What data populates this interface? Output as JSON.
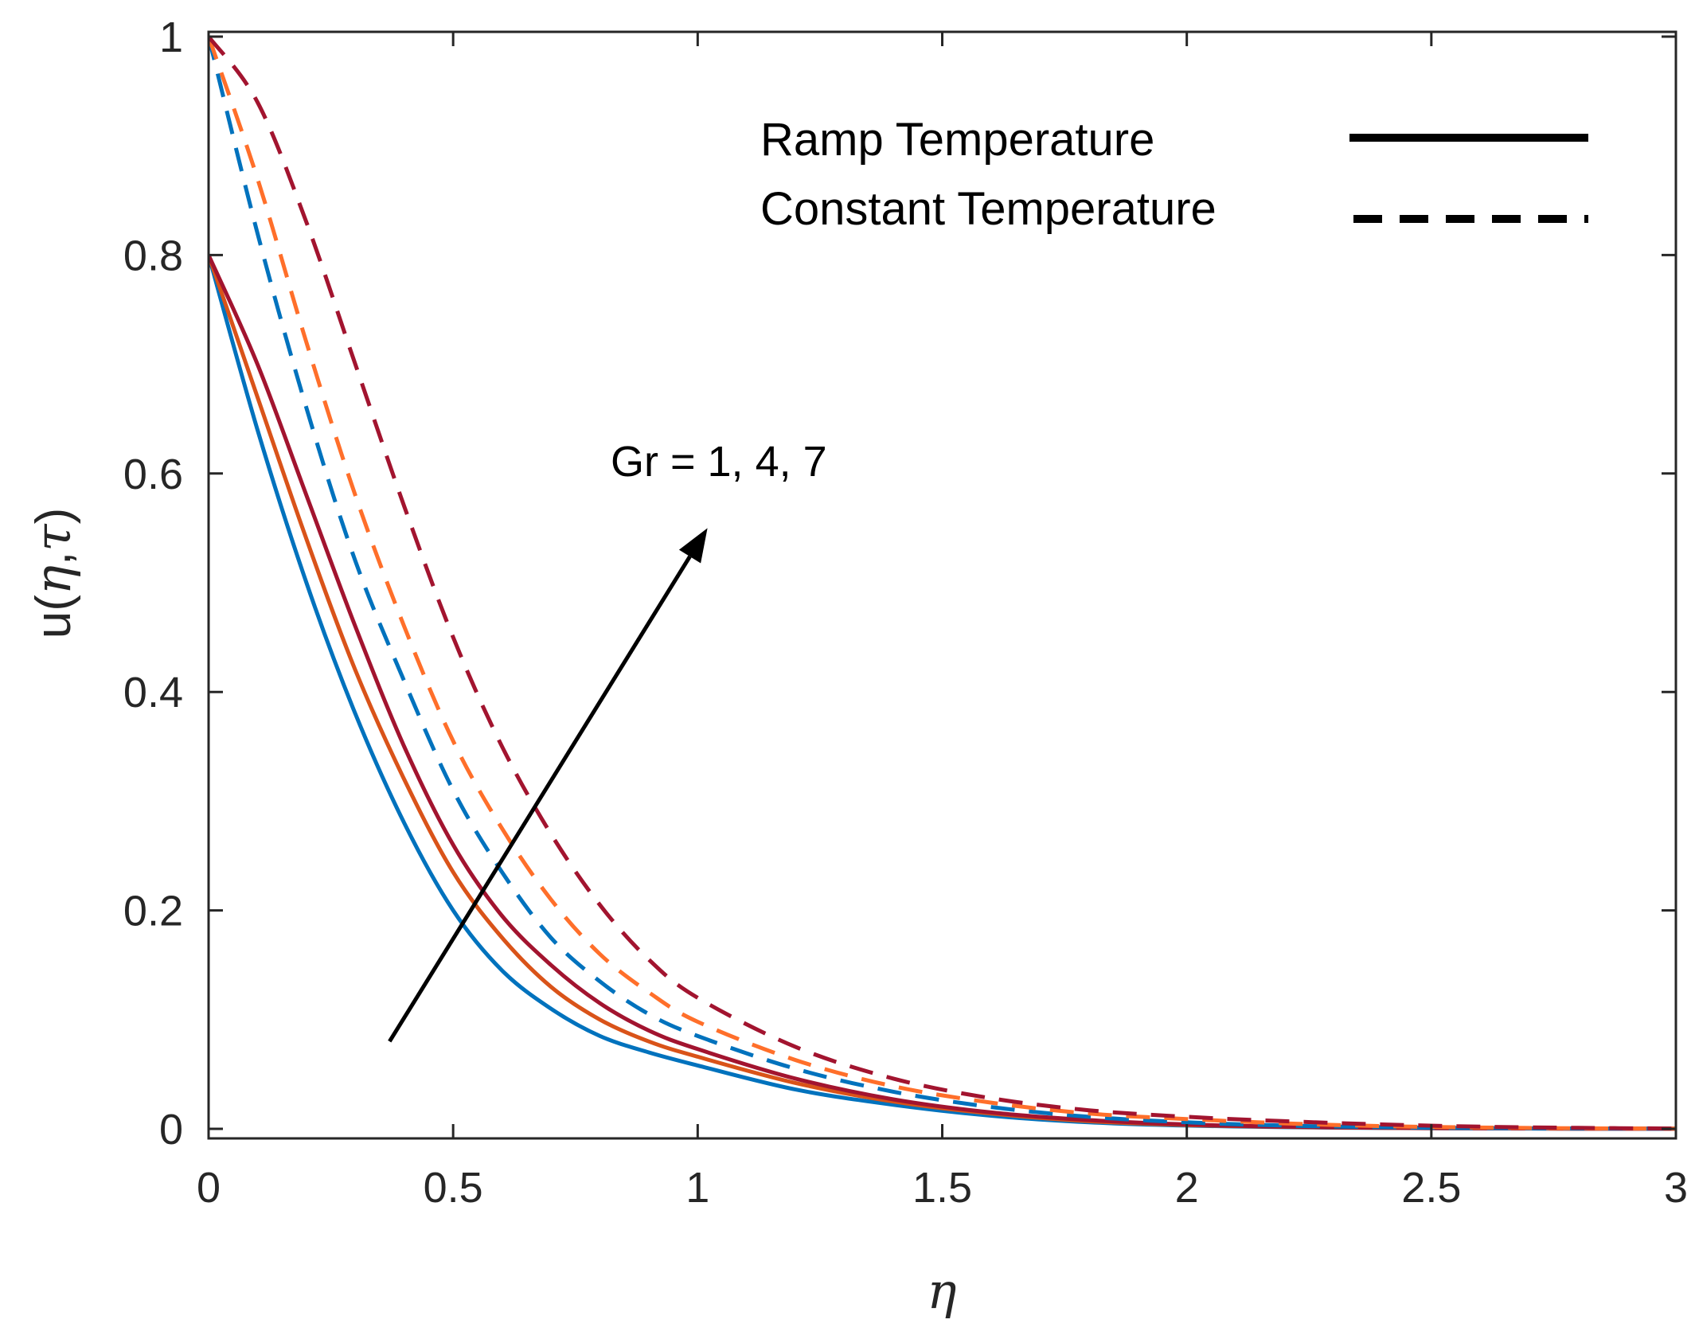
{
  "chart_data": {
    "type": "line",
    "title": "",
    "xlabel": "η",
    "ylabel_parts": [
      "u(",
      "η",
      ",",
      "τ",
      ")"
    ],
    "xlim": [
      0,
      3
    ],
    "ylim": [
      0,
      1
    ],
    "xticks": [
      "0",
      "0.5",
      "1",
      "1.5",
      "2",
      "2.5",
      "3"
    ],
    "yticks": [
      "0",
      "0.2",
      "0.4",
      "0.6",
      "0.8",
      "1"
    ],
    "grid": false,
    "legend": {
      "placement": "top-right",
      "entries": [
        {
          "label": "Ramp Temperature",
          "style": "solid"
        },
        {
          "label": "Constant Temperature",
          "style": "dashed"
        }
      ]
    },
    "annotation": {
      "text": "Gr = 1, 4, 7",
      "arrow_from": [
        0.37,
        0.08
      ],
      "arrow_to": [
        1.02,
        0.55
      ]
    },
    "x": [
      0,
      0.1,
      0.2,
      0.3,
      0.4,
      0.5,
      0.6,
      0.7,
      0.8,
      0.9,
      1.0,
      1.2,
      1.4,
      1.6,
      1.8,
      2.0,
      2.2,
      2.4,
      2.6,
      2.8,
      3.0
    ],
    "series": [
      {
        "style": "solid",
        "color": "#0072BD",
        "values": [
          0.8,
          0.64,
          0.5,
          0.38,
          0.28,
          0.2,
          0.145,
          0.11,
          0.085,
          0.07,
          0.058,
          0.036,
          0.022,
          0.012,
          0.006,
          0.003,
          0.0015,
          0.0008,
          0.0004,
          0.0002,
          0.0001
        ]
      },
      {
        "style": "solid",
        "color": "#D95319",
        "values": [
          0.8,
          0.67,
          0.54,
          0.42,
          0.32,
          0.235,
          0.175,
          0.13,
          0.1,
          0.08,
          0.066,
          0.042,
          0.025,
          0.014,
          0.007,
          0.0035,
          0.0018,
          0.0009,
          0.0005,
          0.0002,
          0.0001
        ]
      },
      {
        "style": "solid",
        "color": "#A2142F",
        "values": [
          0.8,
          0.7,
          0.58,
          0.46,
          0.35,
          0.26,
          0.195,
          0.15,
          0.115,
          0.09,
          0.073,
          0.046,
          0.027,
          0.015,
          0.008,
          0.004,
          0.002,
          0.001,
          0.0005,
          0.0002,
          0.0001
        ]
      },
      {
        "style": "dashed",
        "color": "#0072BD",
        "values": [
          1.0,
          0.82,
          0.66,
          0.52,
          0.41,
          0.31,
          0.235,
          0.175,
          0.135,
          0.105,
          0.085,
          0.055,
          0.034,
          0.02,
          0.011,
          0.006,
          0.003,
          0.0015,
          0.0007,
          0.0003,
          0.0001
        ]
      },
      {
        "style": "dashed",
        "color": "#FF6F2A",
        "values": [
          1.0,
          0.87,
          0.72,
          0.58,
          0.46,
          0.355,
          0.275,
          0.21,
          0.16,
          0.125,
          0.098,
          0.063,
          0.039,
          0.024,
          0.014,
          0.009,
          0.005,
          0.0025,
          0.0012,
          0.0005,
          0.0002
        ]
      },
      {
        "style": "dashed",
        "color": "#A2142F",
        "values": [
          1.0,
          0.94,
          0.83,
          0.7,
          0.57,
          0.45,
          0.35,
          0.27,
          0.205,
          0.155,
          0.12,
          0.075,
          0.046,
          0.028,
          0.017,
          0.011,
          0.007,
          0.004,
          0.002,
          0.0009,
          0.0003
        ]
      }
    ]
  }
}
